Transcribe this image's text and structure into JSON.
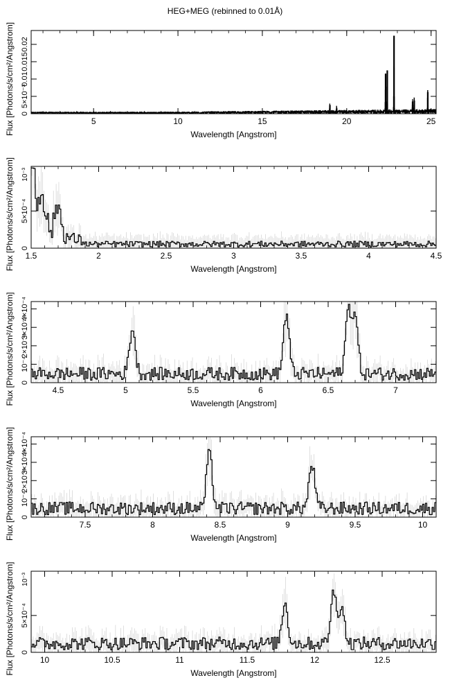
{
  "title": "HEG+MEG (rebinned to 0.01Å)",
  "chart_data": [
    {
      "type": "line",
      "xlabel": "Wavelength [Angstrom]",
      "ylabel": "Flux [Photons/s/cm²/Angstrom]",
      "xlim": [
        1.3,
        25.3
      ],
      "ylim": [
        0,
        0.024
      ],
      "xticks": [
        5,
        10,
        15,
        20,
        25
      ],
      "xtick_labels": [
        "5",
        "10",
        "15",
        "20",
        "25"
      ],
      "yticks": [
        0,
        0.005,
        0.01,
        0.015,
        0.02
      ],
      "ytick_labels": [
        "0",
        "5×10⁻³",
        "0.01",
        "0.015",
        "0.02"
      ],
      "lines": [
        {
          "x": 19.0,
          "y": 0.0025
        },
        {
          "x": 19.4,
          "y": 0.0015
        },
        {
          "x": 22.3,
          "y": 0.0115
        },
        {
          "x": 22.4,
          "y": 0.0125
        },
        {
          "x": 22.8,
          "y": 0.0225
        },
        {
          "x": 23.9,
          "y": 0.0035
        },
        {
          "x": 24.0,
          "y": 0.0038
        },
        {
          "x": 24.8,
          "y": 0.0062
        }
      ]
    },
    {
      "type": "line",
      "xlabel": "Wavelength [Angstrom]",
      "ylabel": "Flux [Photons/s/cm²/Angstrom]",
      "xlim": [
        1.5,
        4.5
      ],
      "ylim": [
        0,
        0.0011
      ],
      "xticks": [
        1.5,
        2,
        2.5,
        3,
        3.5,
        4,
        4.5
      ],
      "xtick_labels": [
        "1.5",
        "2",
        "2.5",
        "3",
        "3.5",
        "4",
        "4.5"
      ],
      "yticks": [
        0,
        0.0005
      ],
      "ytick_labels": [
        "0",
        "5×10⁻⁴"
      ],
      "yscale_label": "10⁻³",
      "peaks": [
        {
          "x": 1.5,
          "y": 0.00095
        },
        {
          "x": 1.58,
          "y": 0.0005
        },
        {
          "x": 1.7,
          "y": 0.0004
        }
      ]
    },
    {
      "type": "line",
      "xlabel": "Wavelength [Angstrom]",
      "ylabel": "Flux [Photons/s/cm²/Angstrom]",
      "xlim": [
        4.3,
        7.3
      ],
      "ylim": [
        0,
        0.00044
      ],
      "xticks": [
        4.5,
        5,
        5.5,
        6,
        6.5,
        7
      ],
      "xtick_labels": [
        "4.5",
        "5",
        "5.5",
        "6",
        "6.5",
        "7"
      ],
      "yticks": [
        0,
        0.0001,
        0.0002,
        0.0003,
        0.0004
      ],
      "ytick_labels": [
        "0",
        "10⁻⁴",
        "2×10⁻⁴",
        "3×10⁻⁴",
        "4×10⁻⁴"
      ],
      "peaks": [
        {
          "x": 5.05,
          "y": 0.00025
        },
        {
          "x": 6.19,
          "y": 0.00032
        },
        {
          "x": 6.65,
          "y": 0.00034
        },
        {
          "x": 6.7,
          "y": 0.0003
        }
      ]
    },
    {
      "type": "line",
      "xlabel": "Wavelength [Angstrom]",
      "ylabel": "Flux [Photons/s/cm²/Angstrom]",
      "xlim": [
        7.1,
        10.1
      ],
      "ylim": [
        0,
        0.00044
      ],
      "xticks": [
        7.5,
        8,
        8.5,
        9,
        9.5,
        10
      ],
      "xtick_labels": [
        "7.5",
        "8",
        "8.5",
        "9",
        "9.5",
        "10"
      ],
      "yticks": [
        0,
        0.0001,
        0.0002,
        0.0003,
        0.0004
      ],
      "ytick_labels": [
        "0",
        "10⁻⁴",
        "2×10⁻⁴",
        "3×10⁻⁴",
        "4×10⁻⁴"
      ],
      "peaks": [
        {
          "x": 8.42,
          "y": 0.0003
        },
        {
          "x": 9.18,
          "y": 0.00024
        }
      ]
    },
    {
      "type": "line",
      "xlabel": "Wavelength [Angstrom]",
      "ylabel": "Flux [Photons/s/cm²/Angstrom]",
      "xlim": [
        9.9,
        12.9
      ],
      "ylim": [
        0,
        0.0011
      ],
      "xticks": [
        10,
        10.5,
        11,
        11.5,
        12,
        12.5
      ],
      "xtick_labels": [
        "10",
        "10.5",
        "11",
        "11.5",
        "12",
        "12.5"
      ],
      "yticks": [
        0,
        0.0005
      ],
      "ytick_labels": [
        "0",
        "5×10⁻⁴"
      ],
      "yscale_label": "10⁻³",
      "peaks": [
        {
          "x": 11.78,
          "y": 0.00055
        },
        {
          "x": 12.14,
          "y": 0.00068
        },
        {
          "x": 12.2,
          "y": 0.0005
        }
      ]
    }
  ]
}
